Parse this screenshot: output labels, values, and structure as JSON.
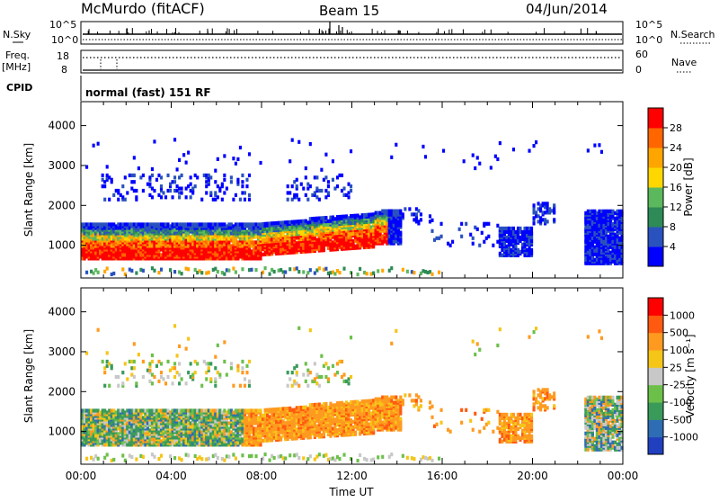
{
  "header": {
    "station": "McMurdo (fitACF)",
    "beam": "Beam 15",
    "date": "04/Jun/2014"
  },
  "top_strip": {
    "nsky_label": "N.Sky",
    "nsearch_label": "N.Search",
    "left_ticks": [
      "10^5",
      "10^0"
    ],
    "right_ticks": [
      "10^5",
      "10^0"
    ],
    "freq_label": "Freq.",
    "freq_unit": "[MHz]",
    "freq_ticks": [
      "18",
      "8"
    ],
    "nave_label": "Nave",
    "nave_ticks": [
      "60",
      "0"
    ],
    "cpid_label": "CPID",
    "cpid_value": "normal (fast) 151 RF"
  },
  "chart_data": [
    {
      "type": "heatmap",
      "name": "power-panel",
      "ylabel": "Slant Range [km]",
      "xlabel": "",
      "yticks": [
        1000,
        2000,
        3000,
        4000
      ],
      "ylim": [
        180,
        4600
      ],
      "xlim_hours": [
        0,
        24
      ],
      "colorbar": {
        "label": "Power [dB]",
        "ticks": [
          "28",
          "24",
          "20",
          "16",
          "12",
          "8",
          "4"
        ],
        "colors": [
          "#0000ff",
          "#2a52be",
          "#2e8b57",
          "#5cb85c",
          "#ffd700",
          "#ffa500",
          "#ff6600",
          "#ff0000"
        ]
      }
    },
    {
      "type": "heatmap",
      "name": "velocity-panel",
      "ylabel": "Slant Range [km]",
      "xlabel": "Time UT",
      "xticks": [
        "00:00",
        "04:00",
        "08:00",
        "12:00",
        "16:00",
        "20:00",
        "00:00"
      ],
      "yticks": [
        1000,
        2000,
        3000,
        4000
      ],
      "ylim": [
        180,
        4600
      ],
      "xlim_hours": [
        0,
        24
      ],
      "colorbar": {
        "label": "Velocity [m s⁻¹]",
        "ticks": [
          "1000",
          "500",
          "100",
          "25",
          "-25",
          "-100",
          "-500",
          "-1000"
        ],
        "colors": [
          "#2040c0",
          "#2e6db4",
          "#3a9a5a",
          "#6cc04a",
          "#c8c8c8",
          "#f5c518",
          "#ff9a20",
          "#ff5a10",
          "#ff0000"
        ]
      }
    }
  ]
}
